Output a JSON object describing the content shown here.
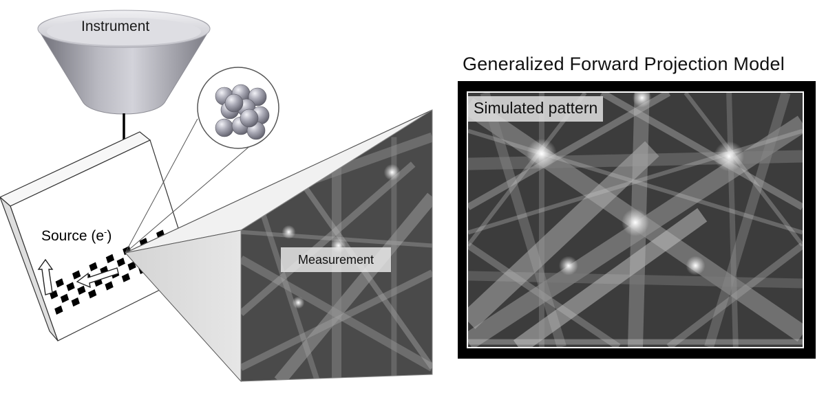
{
  "labels": {
    "instrument": "Instrument",
    "source_text": "Source (e",
    "source_sup": "-",
    "source_close": ")",
    "measurement": "Measurement",
    "model_title": "Generalized Forward Projection Model",
    "simulated": "Simulated pattern"
  },
  "icons": {
    "instrument": "funnel-icon",
    "crystal": "atom-cluster-icon",
    "scan_arrows": "arrow-icon"
  },
  "colors": {
    "outline": "#333333",
    "frame": "#000000",
    "pattern_dark": "#3a3a3a",
    "pattern_light": "#f4f4f4"
  }
}
